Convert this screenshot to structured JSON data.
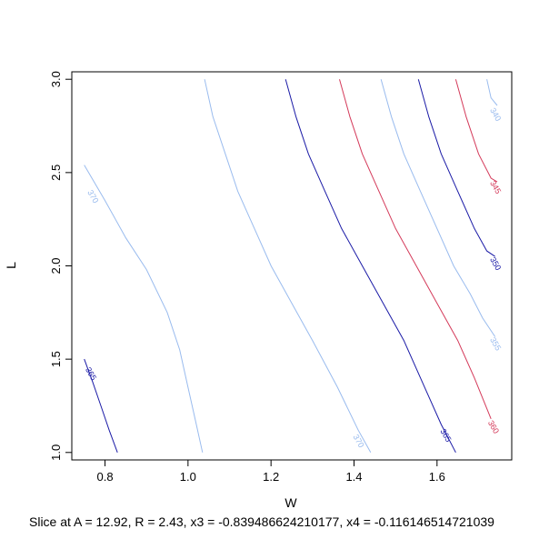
{
  "chart_data": {
    "type": "line",
    "title": "",
    "xlabel": "W",
    "ylabel": "L",
    "xlim": [
      0.72,
      1.78
    ],
    "ylim": [
      0.96,
      3.04
    ],
    "xticks": [
      "0.8",
      "1.0",
      "1.2",
      "1.4",
      "1.6"
    ],
    "yticks": [
      "1.0",
      "1.5",
      "2.0",
      "2.5",
      "3.0"
    ],
    "grid": false,
    "caption": "Slice at A = 12.92, R = 2.43, x3 = -0.839486624210177, x4 = -0.116146514721039",
    "series": [
      {
        "label": "370",
        "color": "#99bbee",
        "label_at": [
          0.77,
          2.37
        ],
        "x": [
          0.75,
          0.8,
          0.85,
          0.9,
          0.95,
          0.98,
          1.0,
          1.02,
          1.035
        ],
        "y": [
          2.54,
          2.35,
          2.15,
          1.98,
          1.75,
          1.55,
          1.35,
          1.15,
          1.0
        ]
      },
      {
        "label": "",
        "color": "#99bbee",
        "label_at": null,
        "x": [
          1.04,
          1.06,
          1.09,
          1.12,
          1.16,
          1.2,
          1.25,
          1.3,
          1.36,
          1.41,
          1.44
        ],
        "y": [
          3.0,
          2.8,
          2.6,
          2.4,
          2.2,
          2.0,
          1.8,
          1.6,
          1.35,
          1.12,
          1.0
        ]
      },
      {
        "label": "370",
        "color": "#99bbee",
        "label_at": [
          1.41,
          1.06
        ],
        "x": [],
        "y": []
      },
      {
        "label": "365",
        "color": "#1a1aa6",
        "label_at": [
          0.765,
          1.42
        ],
        "x": [
          0.75,
          0.77,
          0.79,
          0.81,
          0.83
        ],
        "y": [
          1.5,
          1.38,
          1.25,
          1.12,
          1.0
        ]
      },
      {
        "label": "365",
        "color": "#1a1aa6",
        "label_at": [
          1.62,
          1.09
        ],
        "x": [
          1.235,
          1.26,
          1.29,
          1.33,
          1.37,
          1.42,
          1.47,
          1.52,
          1.57,
          1.61,
          1.645
        ],
        "y": [
          3.0,
          2.8,
          2.6,
          2.4,
          2.2,
          2.0,
          1.8,
          1.6,
          1.35,
          1.15,
          1.0
        ]
      },
      {
        "label": "360",
        "color": "#d43a5a",
        "label_at": [
          1.735,
          1.135
        ],
        "x": [
          1.365,
          1.39,
          1.42,
          1.46,
          1.5,
          1.55,
          1.6,
          1.65,
          1.69,
          1.73
        ],
        "y": [
          3.0,
          2.8,
          2.6,
          2.4,
          2.2,
          2.0,
          1.8,
          1.6,
          1.4,
          1.18
        ]
      },
      {
        "label": "355",
        "color": "#99bbee",
        "label_at": [
          1.74,
          1.58
        ],
        "x": [
          1.465,
          1.49,
          1.52,
          1.56,
          1.6,
          1.64,
          1.68,
          1.71,
          1.74
        ],
        "y": [
          3.0,
          2.8,
          2.6,
          2.4,
          2.2,
          2.0,
          1.85,
          1.72,
          1.62
        ]
      },
      {
        "label": "350",
        "color": "#1a1aa6",
        "label_at": [
          1.74,
          2.01
        ],
        "x": [
          1.555,
          1.58,
          1.61,
          1.65,
          1.69,
          1.72,
          1.74
        ],
        "y": [
          3.0,
          2.8,
          2.6,
          2.4,
          2.2,
          2.08,
          2.05
        ]
      },
      {
        "label": "345",
        "color": "#d43a5a",
        "label_at": [
          1.74,
          2.42
        ],
        "x": [
          1.645,
          1.67,
          1.7,
          1.73,
          1.745
        ],
        "y": [
          3.0,
          2.8,
          2.6,
          2.47,
          2.45
        ]
      },
      {
        "label": "340",
        "color": "#99bbee",
        "label_at": [
          1.74,
          2.81
        ],
        "x": [
          1.72,
          1.73,
          1.745
        ],
        "y": [
          3.0,
          2.9,
          2.86
        ]
      }
    ]
  }
}
